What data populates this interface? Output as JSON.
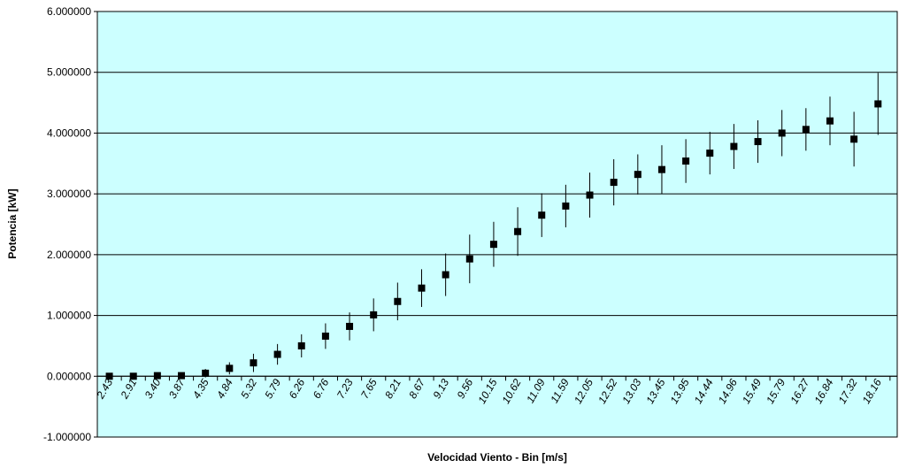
{
  "chart_data": {
    "type": "scatter",
    "title": "",
    "xlabel": "Velocidad Viento - Bin [m/s]",
    "ylabel": "Potencia [kW]",
    "ylim": [
      -1,
      6
    ],
    "y_ticks": [
      "-1.000000",
      "0.000000",
      "1.000000",
      "2.000000",
      "3.000000",
      "4.000000",
      "5.000000",
      "6.000000"
    ],
    "grid": "horizontal",
    "categories": [
      "2.43",
      "2.91",
      "3.40",
      "3.87",
      "4.35",
      "4.84",
      "5.32",
      "5.79",
      "6.26",
      "6.76",
      "7.23",
      "7.65",
      "8.21",
      "8.67",
      "9.13",
      "9.56",
      "10.15",
      "10.62",
      "11.09",
      "11.59",
      "12.05",
      "12.52",
      "13.03",
      "13.45",
      "13.95",
      "14.44",
      "14.96",
      "15.49",
      "15.79",
      "16.27",
      "16.84",
      "17.32",
      "18.16"
    ],
    "series": [
      {
        "values": [
          0.0,
          0.0,
          0.01,
          0.01,
          0.05,
          0.13,
          0.22,
          0.36,
          0.5,
          0.66,
          0.82,
          1.01,
          1.23,
          1.45,
          1.67,
          1.93,
          2.17,
          2.38,
          2.65,
          2.8,
          2.98,
          3.19,
          3.32,
          3.4,
          3.54,
          3.67,
          3.78,
          3.86,
          4.0,
          4.06,
          4.2,
          3.9,
          4.48
        ],
        "error": [
          0.02,
          0.02,
          0.03,
          0.03,
          0.07,
          0.1,
          0.15,
          0.17,
          0.19,
          0.21,
          0.23,
          0.27,
          0.31,
          0.31,
          0.35,
          0.4,
          0.37,
          0.4,
          0.36,
          0.35,
          0.37,
          0.38,
          0.33,
          0.4,
          0.36,
          0.35,
          0.37,
          0.35,
          0.38,
          0.35,
          0.4,
          0.45,
          0.51
        ]
      }
    ],
    "colors": {
      "plot_background": "#ccffff",
      "marker": "#000000",
      "gridline": "#000000"
    }
  }
}
